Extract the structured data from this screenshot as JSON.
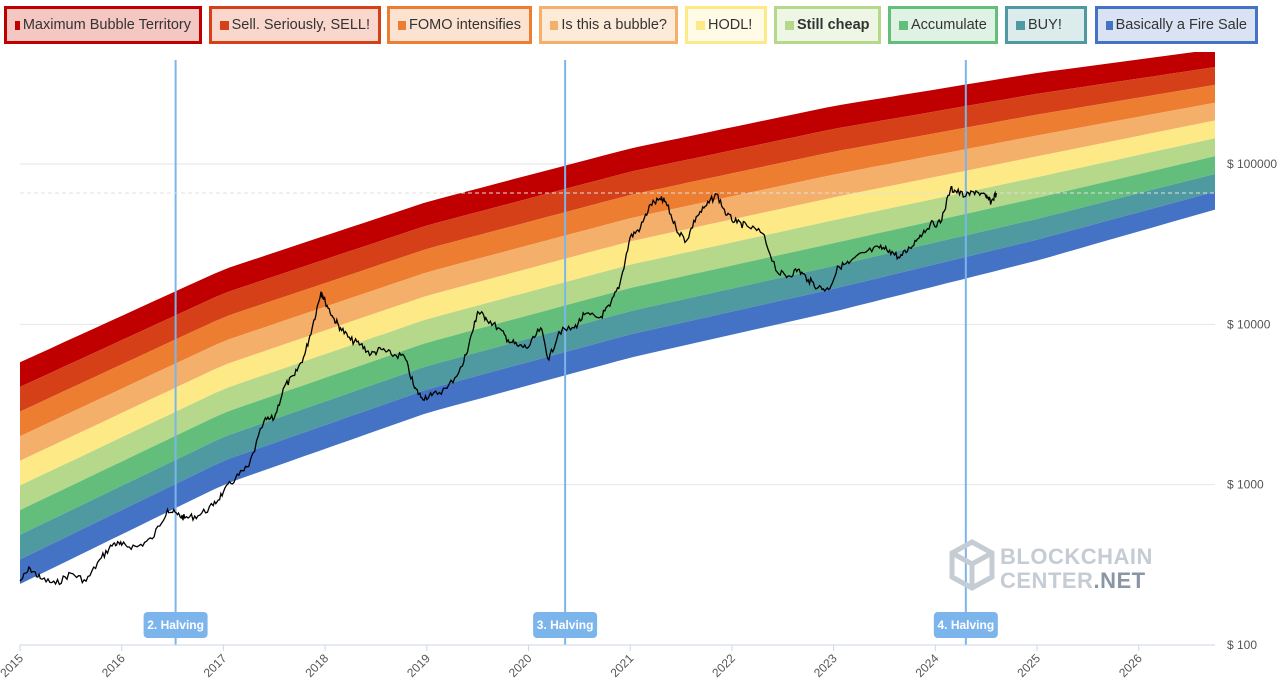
{
  "legend": [
    {
      "label": "Maximum Bubble Territory",
      "color": "#c00000",
      "fill": "#f4c7c3",
      "bold": false
    },
    {
      "label": "Sell. Seriously, SELL!",
      "color": "#d64018",
      "fill": "#fad7cd",
      "bold": false
    },
    {
      "label": "FOMO intensifies",
      "color": "#ed7d31",
      "fill": "#fce2d0",
      "bold": false
    },
    {
      "label": "Is this a bubble?",
      "color": "#f4b06a",
      "fill": "#fdebd9",
      "bold": false
    },
    {
      "label": "HODL!",
      "color": "#fee987",
      "fill": "#fffbe6",
      "bold": false
    },
    {
      "label": "Still cheap",
      "color": "#b5d88a",
      "fill": "#eef7e5",
      "bold": true
    },
    {
      "label": "Accumulate",
      "color": "#63be7b",
      "fill": "#e0f2e4",
      "bold": false
    },
    {
      "label": "BUY!",
      "color": "#4e9aa0",
      "fill": "#dcebec",
      "bold": false
    },
    {
      "label": "Basically a Fire Sale",
      "color": "#4472c4",
      "fill": "#dae3f3",
      "bold": false
    }
  ],
  "chart_data": {
    "type": "line",
    "title": "",
    "xlabel": "",
    "ylabel": "",
    "yscale": "log",
    "xlim": [
      2015.0,
      2026.75
    ],
    "ylim": [
      100,
      500000
    ],
    "x_ticks": [
      "2015",
      "2016",
      "2017",
      "2018",
      "2019",
      "2020",
      "2021",
      "2022",
      "2023",
      "2024",
      "2025",
      "2026"
    ],
    "y_ticks": [
      {
        "value": 100,
        "label": "$ 100"
      },
      {
        "value": 1000,
        "label": "$ 1000"
      },
      {
        "value": 10000,
        "label": "$ 10000"
      },
      {
        "value": 100000,
        "label": "$ 100000"
      }
    ],
    "bands_note": "rainbow of 9 bands, colors from legend, top band = Maximum Bubble Territory",
    "band_edges": {
      "x": [
        2015.0,
        2017.0,
        2019.0,
        2021.0,
        2023.0,
        2025.0,
        2026.75
      ],
      "bottom": [
        240,
        1000,
        2800,
        6200,
        12000,
        25000,
        52000
      ],
      "top": [
        5800,
        22000,
        58000,
        125000,
        230000,
        370000,
        520000
      ]
    },
    "series": [
      {
        "name": "BTC price",
        "x": [
          2015.0,
          2015.1,
          2015.2,
          2015.35,
          2015.5,
          2015.65,
          2015.8,
          2015.92,
          2016.0,
          2016.15,
          2016.3,
          2016.45,
          2016.55,
          2016.62,
          2016.75,
          2016.9,
          2017.0,
          2017.12,
          2017.25,
          2017.4,
          2017.5,
          2017.6,
          2017.7,
          2017.8,
          2017.88,
          2017.96,
          2018.0,
          2018.08,
          2018.15,
          2018.25,
          2018.35,
          2018.45,
          2018.55,
          2018.65,
          2018.78,
          2018.88,
          2018.95,
          2019.05,
          2019.2,
          2019.35,
          2019.45,
          2019.5,
          2019.58,
          2019.7,
          2019.8,
          2019.9,
          2020.0,
          2020.12,
          2020.2,
          2020.3,
          2020.45,
          2020.55,
          2020.7,
          2020.8,
          2020.9,
          2021.0,
          2021.1,
          2021.2,
          2021.3,
          2021.35,
          2021.45,
          2021.55,
          2021.65,
          2021.75,
          2021.85,
          2021.95,
          2022.05,
          2022.15,
          2022.3,
          2022.45,
          2022.55,
          2022.65,
          2022.75,
          2022.85,
          2022.95,
          2023.05,
          2023.15,
          2023.3,
          2023.45,
          2023.55,
          2023.65,
          2023.75,
          2023.85,
          2023.95,
          2024.05,
          2024.15,
          2024.2,
          2024.3,
          2024.4,
          2024.5,
          2024.55,
          2024.6
        ],
        "values": [
          250,
          300,
          260,
          240,
          280,
          250,
          350,
          430,
          420,
          410,
          460,
          700,
          650,
          620,
          640,
          740,
          900,
          1100,
          1300,
          2500,
          2600,
          4100,
          4800,
          6500,
          10000,
          16000,
          14000,
          11000,
          9500,
          8000,
          7500,
          6500,
          7000,
          6500,
          6300,
          4000,
          3500,
          3600,
          4000,
          5500,
          9000,
          12000,
          11000,
          9500,
          8000,
          7300,
          7200,
          9500,
          6000,
          9000,
          9500,
          11500,
          11000,
          13000,
          18000,
          35000,
          40000,
          56000,
          60000,
          58000,
          40000,
          33000,
          47000,
          55000,
          65000,
          48000,
          43000,
          41000,
          37000,
          21000,
          20000,
          22000,
          19000,
          17000,
          16500,
          23000,
          24000,
          28000,
          30000,
          29000,
          26000,
          30000,
          36000,
          42000,
          43000,
          70000,
          68000,
          63000,
          68000,
          62000,
          58000,
          66000
        ]
      }
    ],
    "halvings": [
      {
        "x": 2016.53,
        "label": "2. Halving"
      },
      {
        "x": 2020.36,
        "label": "3. Halving"
      },
      {
        "x": 2024.3,
        "label": "4. Halving"
      }
    ],
    "current_price_line": 66000,
    "grid": true
  },
  "watermark": {
    "line1": "BLOCKCHAIN",
    "line2": "CENTER",
    "line3": ".NET"
  }
}
